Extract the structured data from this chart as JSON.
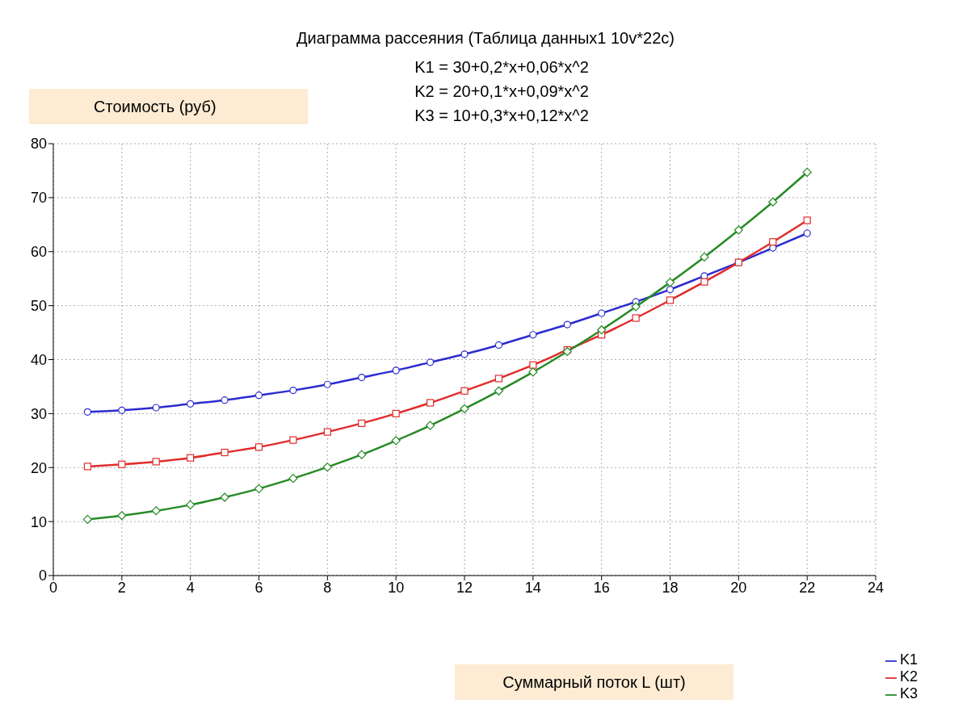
{
  "chart_data": {
    "type": "line",
    "title": "Диаграмма рассеяния (Таблица данных1 10v*22c)",
    "annotations": [
      "K1 = 30+0,2*x+0,06*x^2",
      "K2 = 20+0,1*x+0,09*x^2",
      "K3 = 10+0,3*x+0,12*x^2"
    ],
    "xlabel": "Суммарный поток L (шт)",
    "ylabel": "Стоимость (руб)",
    "x": [
      1,
      2,
      3,
      4,
      5,
      6,
      7,
      8,
      9,
      10,
      11,
      12,
      13,
      14,
      15,
      16,
      17,
      18,
      19,
      20,
      21,
      22
    ],
    "series": [
      {
        "name": "K1",
        "color": "#2b2bd0",
        "marker": "circle",
        "values": [
          30.3,
          30.6,
          31.1,
          31.8,
          32.5,
          33.4,
          34.3,
          35.4,
          36.7,
          38,
          39.5,
          41,
          42.7,
          44.6,
          46.5,
          48.6,
          50.7,
          53,
          55.5,
          58,
          60.7,
          63.4
        ]
      },
      {
        "name": "K2",
        "color": "#e02c2c",
        "marker": "square",
        "values": [
          20.2,
          20.6,
          21.1,
          21.8,
          22.8,
          23.8,
          25.1,
          26.6,
          28.2,
          30,
          32,
          34.2,
          36.5,
          39,
          41.8,
          44.6,
          47.7,
          51,
          54.4,
          58,
          61.8,
          65.8
        ]
      },
      {
        "name": "K3",
        "color": "#258a25",
        "marker": "diamond",
        "values": [
          10.4,
          11.1,
          12,
          13.1,
          14.5,
          16.1,
          18,
          20.1,
          22.4,
          25,
          27.8,
          30.9,
          34.2,
          37.7,
          41.5,
          45.5,
          49.8,
          54.3,
          59,
          64,
          69.2,
          74.7
        ]
      }
    ],
    "xlim": [
      0,
      24
    ],
    "xticks": [
      0,
      2,
      4,
      6,
      8,
      10,
      12,
      14,
      16,
      18,
      20,
      22,
      24
    ],
    "ylim": [
      0,
      80
    ],
    "yticks": [
      0,
      10,
      20,
      30,
      40,
      50,
      60,
      70,
      80
    ],
    "grid": true,
    "legend": "bottom right",
    "line_style": "solid"
  }
}
